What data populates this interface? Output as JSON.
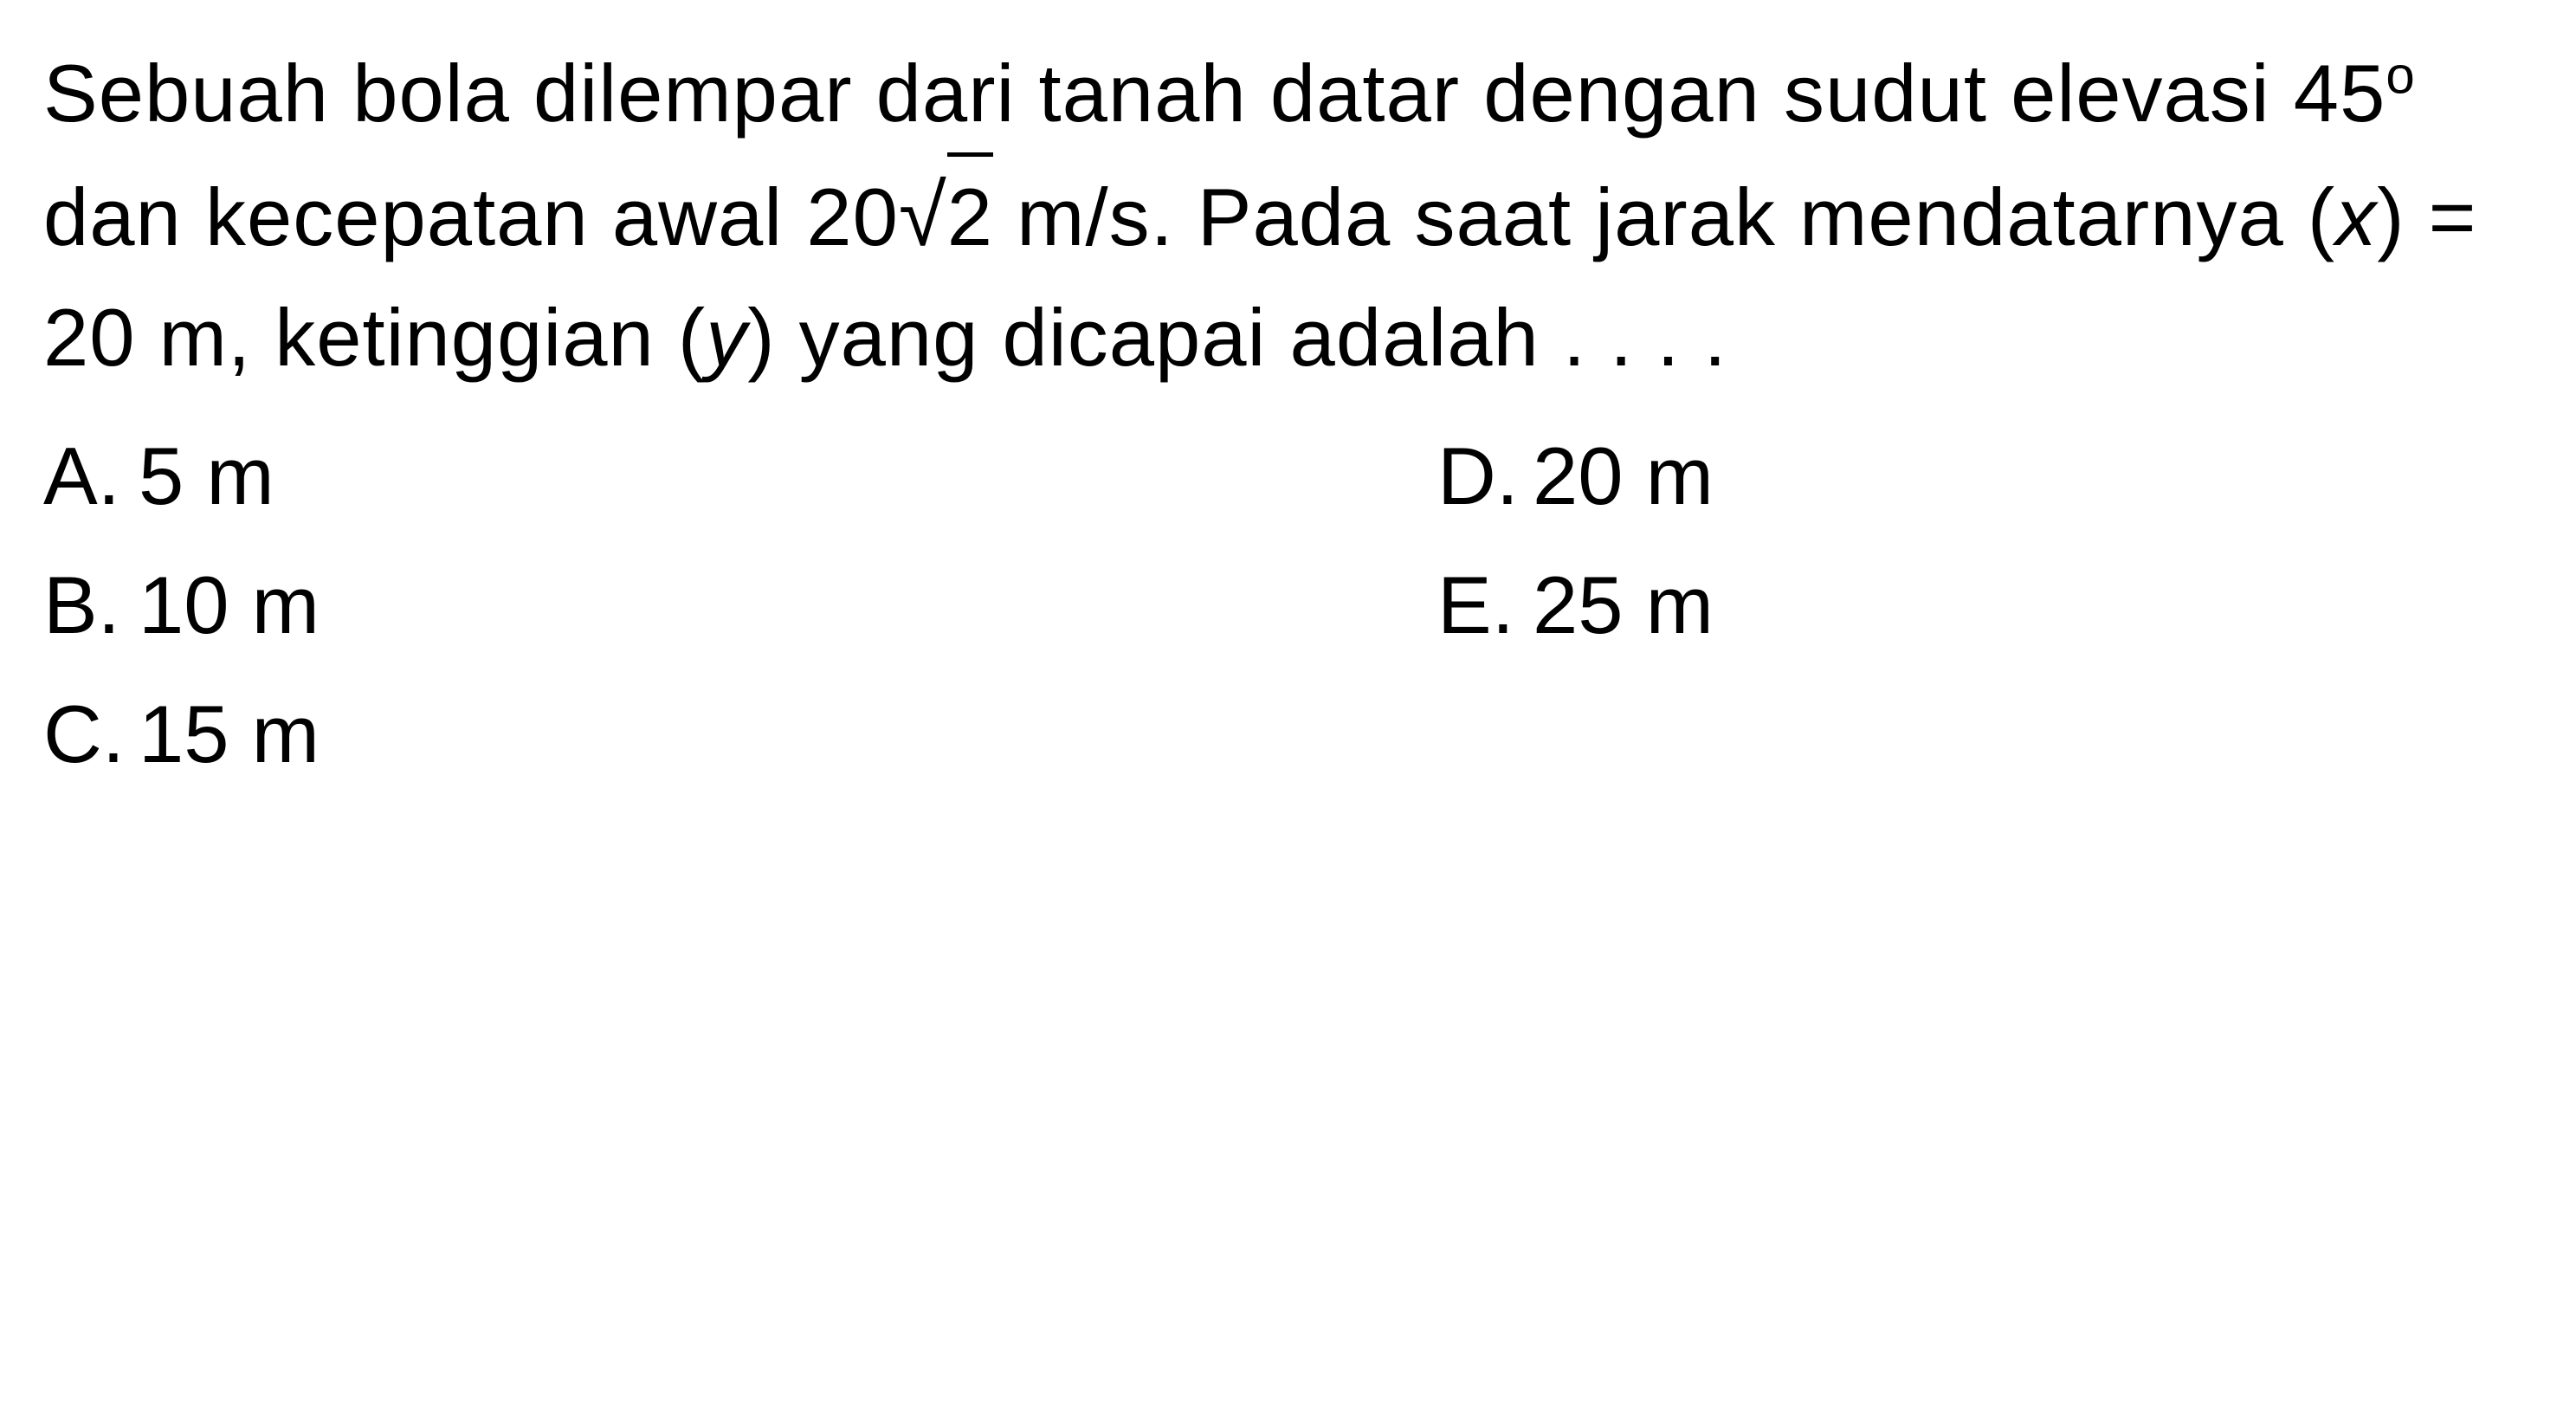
{
  "question": {
    "line1_part1": "Sebuah bola dilempar dari tanah datar dengan sudut elevasi 45",
    "degree_symbol": "o",
    "line1_part2": " dan kecepatan awal 20",
    "sqrt_value": "2",
    "line1_part3": " m/s. Pada saat jarak mendatar­nya (",
    "var_x": "x",
    "line1_part4": ") = 20 m, ketinggian (",
    "var_y": "y",
    "line1_part5": ") yang dicapai adalah . . . ."
  },
  "options": {
    "a": {
      "label": "A.",
      "value": "5 m"
    },
    "b": {
      "label": "B.",
      "value": "10 m"
    },
    "c": {
      "label": "C.",
      "value": "15 m"
    },
    "d": {
      "label": "D.",
      "value": "20 m"
    },
    "e": {
      "label": "E.",
      "value": "25 m"
    }
  },
  "styling": {
    "background_color": "#ffffff",
    "text_color": "#000000",
    "font_size_main": 94,
    "font_size_sup": 60,
    "line_height": 1.45,
    "font_family": "Arial, Helvetica, sans-serif"
  }
}
